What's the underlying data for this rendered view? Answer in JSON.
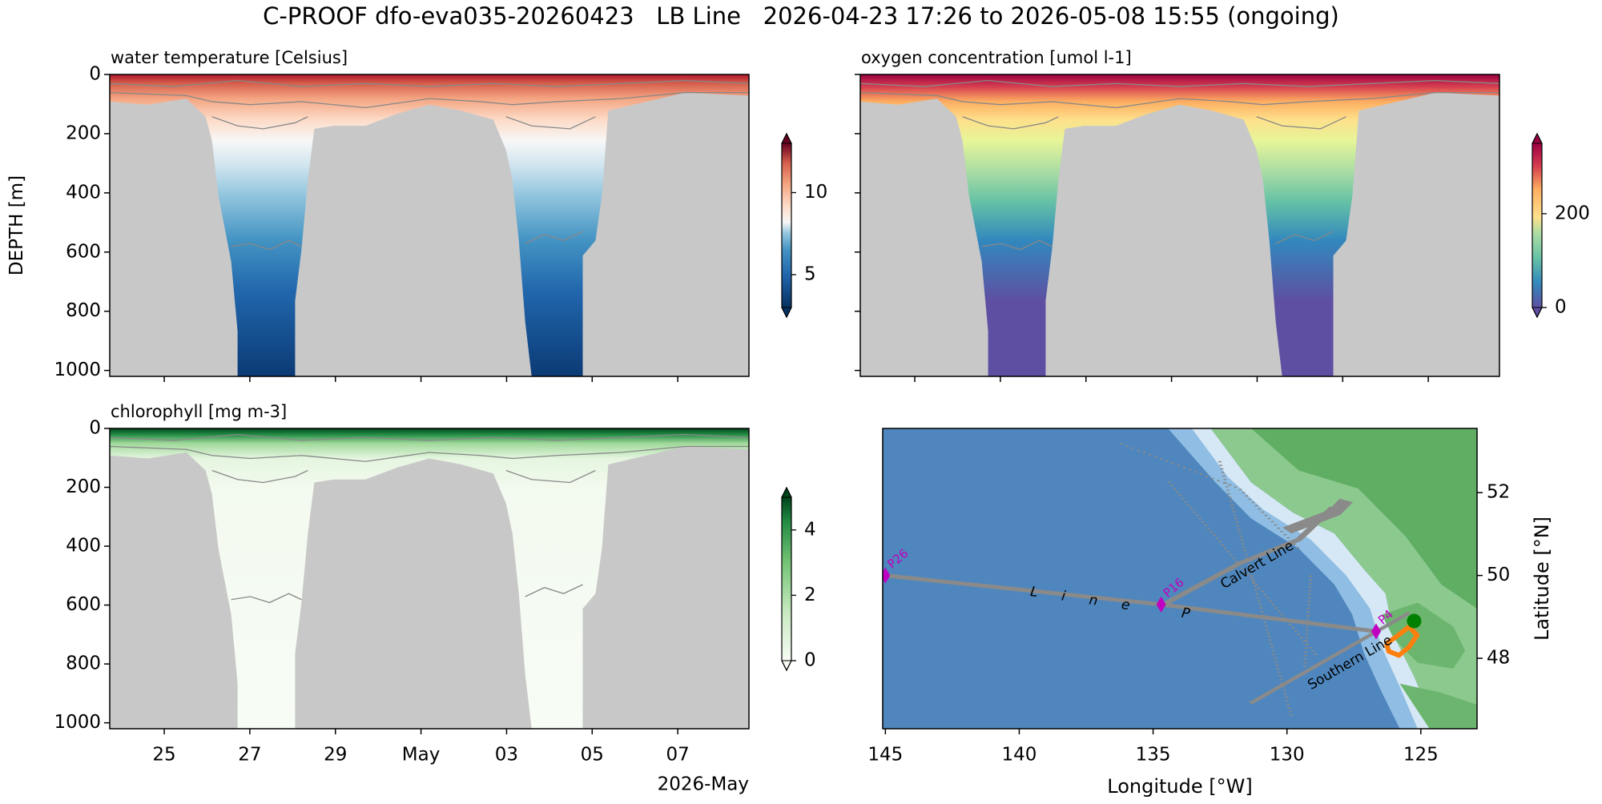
{
  "title": "C-PROOF dfo-eva035-20260423   LB Line   2026-04-23 17:26 to 2026-05-08 15:55 (ongoing)",
  "chart_data": [
    {
      "type": "heatmap",
      "title": "water temperature [Celsius]",
      "ylabel": "DEPTH [m]",
      "xlim": [
        "2026-04-23T17:26",
        "2026-05-08T15:55"
      ],
      "ylim": [
        0,
        1020
      ],
      "yinverted": true,
      "yticks": [
        0,
        200,
        400,
        600,
        800,
        1000
      ],
      "colormap": "RdBu_r",
      "colorbar": {
        "lim": [
          3,
          13
        ],
        "ticks": [
          5,
          10
        ]
      }
    },
    {
      "type": "heatmap",
      "title": "oxygen concentration [umol l-1]",
      "xlim": [
        "2026-04-23T17:26",
        "2026-05-08T15:55"
      ],
      "ylim": [
        0,
        1020
      ],
      "yinverted": true,
      "colormap": "Spectral_r",
      "colorbar": {
        "lim": [
          0,
          350
        ],
        "ticks": [
          0,
          200
        ]
      }
    },
    {
      "type": "heatmap",
      "title": "chlorophyll [mg m-3]",
      "xlim": [
        "2026-04-23T17:26",
        "2026-05-08T15:55"
      ],
      "ylim": [
        0,
        1020
      ],
      "yinverted": true,
      "yticks": [
        0,
        200,
        400,
        600,
        800,
        1000
      ],
      "xticks": [
        {
          "value": "2026-04-25T00:00",
          "label": "25"
        },
        {
          "value": "2026-04-27T00:00",
          "label": "27"
        },
        {
          "value": "2026-04-29T00:00",
          "label": "29"
        },
        {
          "value": "2026-05-01T00:00",
          "label": "May"
        },
        {
          "value": "2026-05-03T00:00",
          "label": "03"
        },
        {
          "value": "2026-05-05T00:00",
          "label": "05"
        },
        {
          "value": "2026-05-07T00:00",
          "label": "07"
        }
      ],
      "x_offset_label": "2026-May",
      "colormap": "Greens",
      "colorbar": {
        "lim": [
          0,
          5
        ],
        "ticks": [
          0,
          2,
          4
        ]
      }
    },
    {
      "type": "map",
      "xlabel": "Longitude [°W]",
      "ylabel": "Latitude [°N]",
      "xlim": [
        145.1,
        122.9
      ],
      "ylim": [
        46.3,
        53.55
      ],
      "xticks": [
        145,
        140,
        135,
        130,
        125
      ],
      "yticks": [
        48,
        50,
        52
      ],
      "stations": {
        "names": [
          "P26",
          "P16",
          "P4"
        ],
        "lon": [
          145.0,
          134.7,
          126.67
        ],
        "lat": [
          50.0,
          49.3,
          48.65
        ],
        "color": "#c000c0"
      },
      "track": {
        "lon": [
          126.28,
          125.94,
          125.44,
          125.14,
          125.44,
          125.82,
          126.2,
          126.28
        ],
        "lat": [
          48.36,
          48.51,
          48.76,
          48.56,
          48.27,
          48.07,
          48.17,
          48.36
        ],
        "color": "#ff7f0e"
      },
      "current_position": {
        "lon": 125.25,
        "lat": 48.9,
        "color": "#008000"
      },
      "annotations": [
        "Calvert Line",
        "Southern Line",
        "Line P"
      ]
    }
  ]
}
